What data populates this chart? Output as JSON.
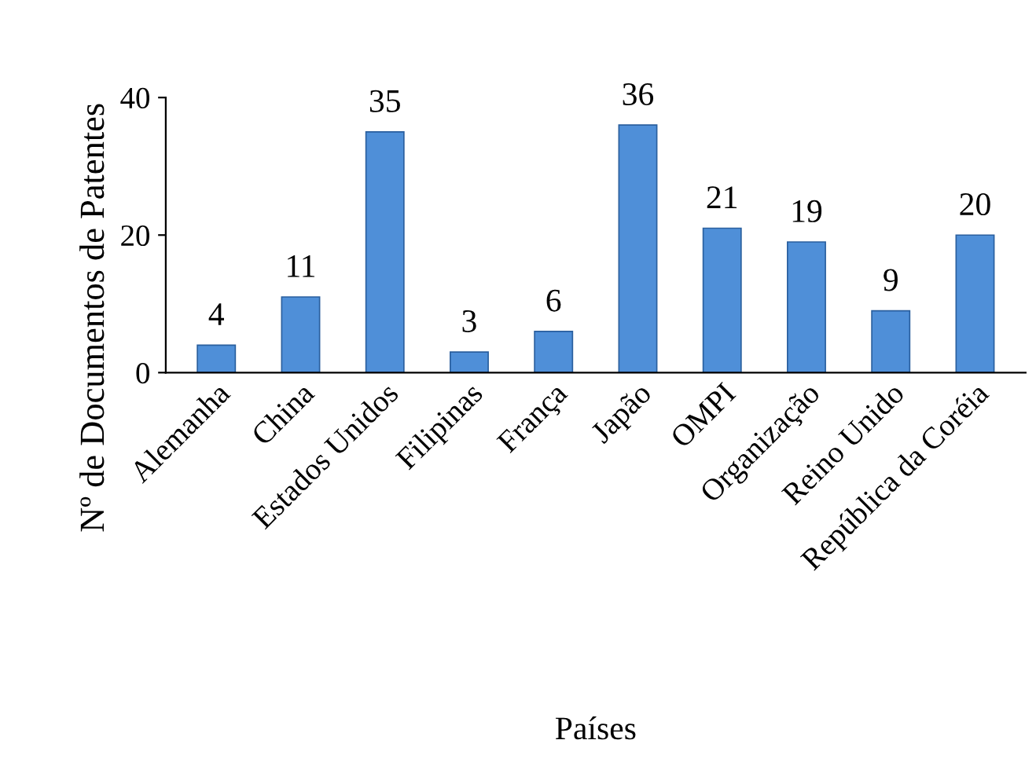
{
  "chart_data": {
    "type": "bar",
    "xlabel": "Países",
    "ylabel": "Nº de Documentos de Patentes",
    "categories": [
      "Alemanha",
      "China",
      "Estados Unidos",
      "Filipinas",
      "França",
      "Japão",
      "OMPI",
      "Organização",
      "Reino Unido",
      "República da Coréia"
    ],
    "values": [
      4,
      11,
      35,
      3,
      6,
      36,
      21,
      19,
      9,
      20
    ],
    "color": "#4f8fd8",
    "ylim": [
      0,
      40
    ],
    "yticks": [
      0,
      20,
      40
    ],
    "data_labels": true,
    "grid": false,
    "legend": false
  }
}
